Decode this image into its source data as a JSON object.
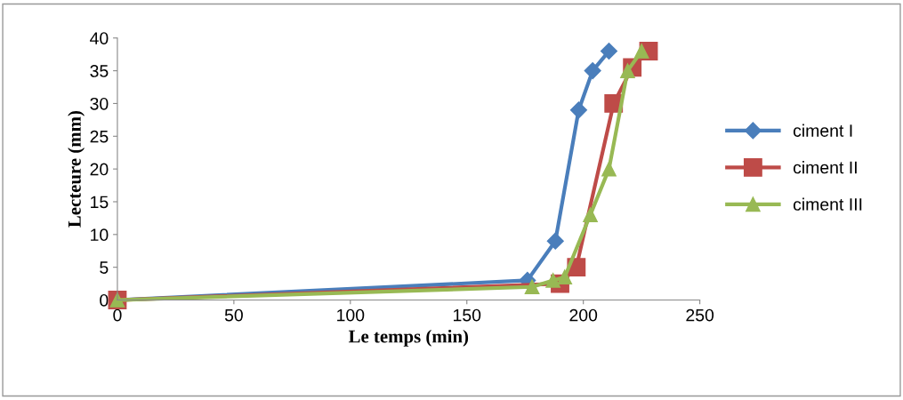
{
  "chart_data": {
    "type": "line",
    "xlabel": "Le temps (min)",
    "ylabel": "Lecteure (mm)",
    "xlim": [
      0,
      250
    ],
    "xticks": [
      0,
      50,
      100,
      150,
      200,
      250
    ],
    "ylim": [
      0,
      40
    ],
    "yticks": [
      0,
      5,
      10,
      15,
      20,
      25,
      30,
      35,
      40
    ],
    "grid": false,
    "legend": "right",
    "series": [
      {
        "name": "ciment I",
        "color": "#4a7ebb",
        "marker": "diamond",
        "x": [
          0,
          176,
          188,
          198,
          204,
          211
        ],
        "values": [
          0,
          3,
          9,
          29,
          35,
          38
        ]
      },
      {
        "name": "ciment II",
        "color": "#be4b48",
        "marker": "square",
        "x": [
          0,
          190,
          197,
          213,
          221,
          228
        ],
        "values": [
          0,
          2.5,
          5,
          30,
          35.5,
          38
        ]
      },
      {
        "name": "ciment III",
        "color": "#98b954",
        "marker": "triangle",
        "x": [
          0,
          178,
          187,
          192,
          203,
          211,
          219,
          225
        ],
        "values": [
          0,
          2,
          3,
          3.5,
          13,
          20,
          35,
          38
        ]
      }
    ]
  }
}
